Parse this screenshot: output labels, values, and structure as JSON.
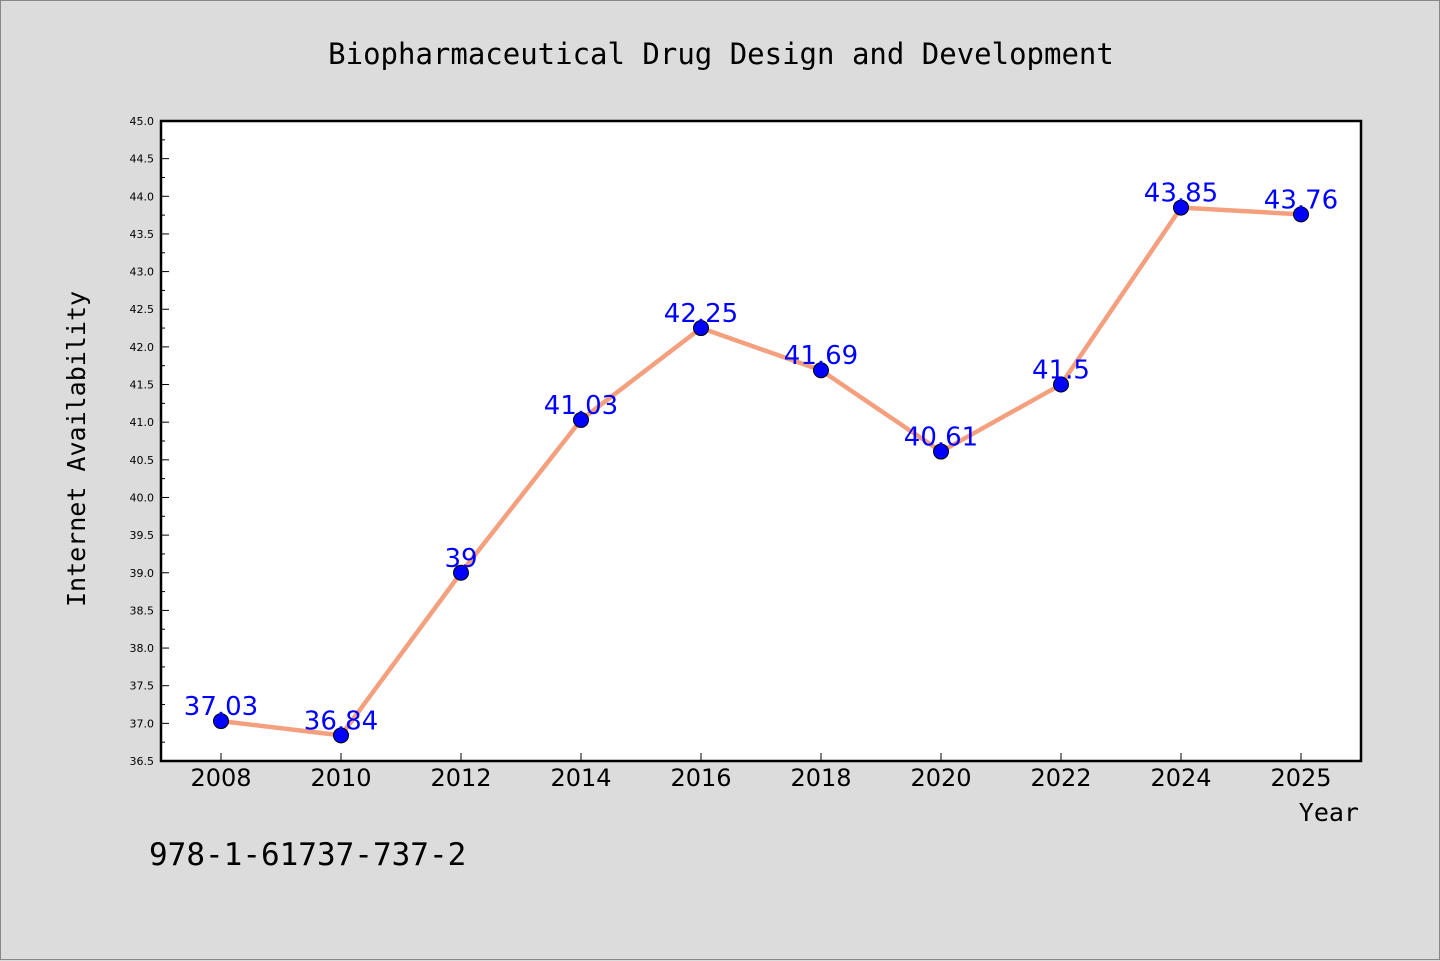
{
  "chart_data": {
    "type": "line",
    "title": "Biopharmaceutical Drug Design and Development",
    "xlabel": "Year",
    "ylabel": "Internet Availability",
    "categories": [
      "2008",
      "2010",
      "2012",
      "2014",
      "2016",
      "2018",
      "2020",
      "2022",
      "2024",
      "2025"
    ],
    "series": [
      {
        "values": [
          37.03,
          36.84,
          39,
          41.03,
          42.25,
          41.69,
          40.61,
          41.5,
          43.85,
          43.76
        ],
        "labels": [
          "37.03",
          "36.84",
          "39",
          "41.03",
          "42.25",
          "41.69",
          "40.61",
          "41.5",
          "43.85",
          "43.76"
        ],
        "line_color": "#f4a07e",
        "marker_color": "#0000ff"
      }
    ],
    "ylim": [
      36.5,
      45.0
    ],
    "yticks": [
      "36.5",
      "37.0",
      "37.5",
      "38.0",
      "38.5",
      "39.0",
      "39.5",
      "40.0",
      "40.5",
      "41.0",
      "41.5",
      "42.0",
      "42.5",
      "43.0",
      "43.5",
      "44.0",
      "44.5",
      "45.0"
    ],
    "grid": false,
    "background_color": "#dcdcdc",
    "plot_background_color": "#ffffff"
  },
  "footer": {
    "isbn": "978-1-61737-737-2"
  }
}
